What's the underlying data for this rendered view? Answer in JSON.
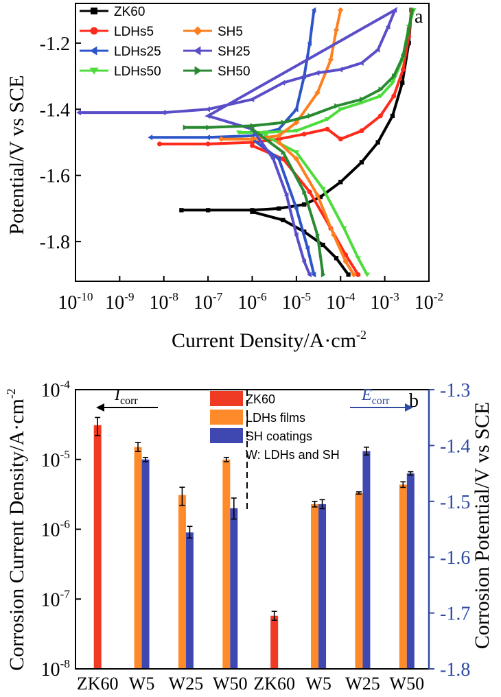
{
  "chart_data": [
    {
      "panel": "a",
      "type": "line",
      "xlabel": "Current Density/A·cm",
      "xlabel_sup": "-2",
      "ylabel": "Potential/V vs SCE",
      "x_scale": "log",
      "xlim": [
        1e-10,
        0.01
      ],
      "ylim": [
        -1.92,
        -1.08
      ],
      "x_ticks": [
        {
          "base": "10",
          "exp": "-10"
        },
        {
          "base": "10",
          "exp": "-9"
        },
        {
          "base": "10",
          "exp": "-8"
        },
        {
          "base": "10",
          "exp": "-7"
        },
        {
          "base": "10",
          "exp": "-6"
        },
        {
          "base": "10",
          "exp": "-5"
        },
        {
          "base": "10",
          "exp": "-4"
        },
        {
          "base": "10",
          "exp": "-3"
        },
        {
          "base": "10",
          "exp": "-2"
        }
      ],
      "y_ticks": [
        {
          "value": -1.2,
          "label": "-1.2"
        },
        {
          "value": -1.4,
          "label": "-1.4"
        },
        {
          "value": -1.6,
          "label": "-1.6"
        },
        {
          "value": -1.8,
          "label": "-1.8"
        }
      ],
      "legend_position": "top-left",
      "series": [
        {
          "name": "ZK60",
          "color": "#000000",
          "marker": "square",
          "points": [
            [
              2.5e-08,
              -1.705
            ],
            [
              1e-07,
              -1.705
            ],
            [
              1e-06,
              -1.705
            ],
            [
              4e-06,
              -1.7
            ],
            [
              1.5e-05,
              -1.688
            ],
            [
              3.5e-05,
              -1.665
            ],
            [
              0.0001,
              -1.62
            ],
            [
              0.0003,
              -1.56
            ],
            [
              0.0007,
              -1.5
            ],
            [
              0.0015,
              -1.42
            ],
            [
              0.0025,
              -1.32
            ],
            [
              0.0035,
              -1.2
            ],
            [
              0.004,
              -1.1
            ],
            [
              1e-06,
              -1.71
            ],
            [
              5e-06,
              -1.735
            ],
            [
              1.5e-05,
              -1.77
            ],
            [
              4e-05,
              -1.81
            ],
            [
              8e-05,
              -1.85
            ],
            [
              0.00015,
              -1.9
            ]
          ]
        },
        {
          "name": "LDHs5",
          "color": "#ff2a1a",
          "marker": "circle",
          "points": [
            [
              8e-09,
              -1.505
            ],
            [
              1e-07,
              -1.505
            ],
            [
              1e-06,
              -1.5
            ],
            [
              4e-06,
              -1.49
            ],
            [
              1.5e-05,
              -1.475
            ],
            [
              5e-05,
              -1.46
            ],
            [
              0.0001,
              -1.49
            ],
            [
              0.0003,
              -1.465
            ],
            [
              0.0008,
              -1.42
            ],
            [
              0.0016,
              -1.36
            ],
            [
              0.0026,
              -1.28
            ],
            [
              0.0035,
              -1.18
            ],
            [
              0.004,
              -1.1
            ],
            [
              1e-06,
              -1.51
            ],
            [
              5e-06,
              -1.55
            ],
            [
              2e-05,
              -1.65
            ],
            [
              6e-05,
              -1.76
            ],
            [
              0.00013,
              -1.84
            ],
            [
              0.00025,
              -1.9
            ]
          ]
        },
        {
          "name": "LDHs25",
          "color": "#2d55c8",
          "marker": "triangle-left",
          "points": [
            [
              5e-09,
              -1.485
            ],
            [
              1e-07,
              -1.485
            ],
            [
              1e-06,
              -1.48
            ],
            [
              4e-06,
              -1.46
            ],
            [
              1e-05,
              -1.4
            ],
            [
              1.5e-05,
              -1.3
            ],
            [
              2e-05,
              -1.2
            ],
            [
              2.5e-05,
              -1.1
            ],
            [
              1e-06,
              -1.49
            ],
            [
              4e-06,
              -1.55
            ],
            [
              1e-05,
              -1.7
            ],
            [
              1.8e-05,
              -1.82
            ],
            [
              2.5e-05,
              -1.9
            ]
          ]
        },
        {
          "name": "LDHs50",
          "color": "#4ddc3c",
          "marker": "triangle-down",
          "points": [
            [
              5e-07,
              -1.47
            ],
            [
              2e-06,
              -1.47
            ],
            [
              1e-05,
              -1.465
            ],
            [
              5e-05,
              -1.43
            ],
            [
              0.0001,
              -1.4
            ],
            [
              0.0003,
              -1.38
            ],
            [
              0.0008,
              -1.36
            ],
            [
              0.0015,
              -1.32
            ],
            [
              0.0025,
              -1.25
            ],
            [
              0.0035,
              -1.15
            ],
            [
              0.0045,
              -1.1
            ],
            [
              2e-06,
              -1.48
            ],
            [
              1e-05,
              -1.53
            ],
            [
              4e-05,
              -1.64
            ],
            [
              0.00012,
              -1.76
            ],
            [
              0.00025,
              -1.85
            ],
            [
              0.0004,
              -1.9
            ]
          ]
        },
        {
          "name": "SH5",
          "color": "#ff7f1e",
          "marker": "diamond",
          "points": [
            [
              2e-07,
              -1.49
            ],
            [
              1e-06,
              -1.49
            ],
            [
              4e-06,
              -1.48
            ],
            [
              1e-05,
              -1.44
            ],
            [
              3e-05,
              -1.35
            ],
            [
              6e-05,
              -1.25
            ],
            [
              8e-05,
              -1.16
            ],
            [
              0.0001,
              -1.1
            ],
            [
              4e-06,
              -1.5
            ],
            [
              1e-05,
              -1.55
            ],
            [
              3e-05,
              -1.66
            ],
            [
              7e-05,
              -1.78
            ],
            [
              0.00013,
              -1.86
            ],
            [
              0.0002,
              -1.9
            ]
          ]
        },
        {
          "name": "SH25",
          "color": "#5a4ec8",
          "marker": "triangle-left",
          "points": [
            [
              1.2e-10,
              -1.41
            ],
            [
              1e-08,
              -1.41
            ],
            [
              1e-07,
              -1.4
            ],
            [
              1e-06,
              -1.37
            ],
            [
              5e-06,
              -1.32
            ],
            [
              3e-05,
              -1.29
            ],
            [
              0.0001,
              -1.28
            ],
            [
              0.0003,
              -1.26
            ],
            [
              0.0007,
              -1.22
            ],
            [
              0.0012,
              -1.15
            ],
            [
              0.0017,
              -1.1
            ],
            [
              1e-07,
              -1.42
            ],
            [
              1e-06,
              -1.46
            ],
            [
              3e-06,
              -1.55
            ],
            [
              6e-06,
              -1.66
            ],
            [
              1e-05,
              -1.78
            ],
            [
              1.5e-05,
              -1.86
            ],
            [
              2e-05,
              -1.9
            ]
          ]
        },
        {
          "name": "SH50",
          "color": "#2a8a32",
          "marker": "triangle-right",
          "points": [
            [
              3e-08,
              -1.455
            ],
            [
              1e-07,
              -1.455
            ],
            [
              1e-06,
              -1.45
            ],
            [
              5e-06,
              -1.44
            ],
            [
              2e-05,
              -1.42
            ],
            [
              8e-05,
              -1.39
            ],
            [
              0.0003,
              -1.37
            ],
            [
              0.0008,
              -1.34
            ],
            [
              0.0016,
              -1.3
            ],
            [
              0.0026,
              -1.24
            ],
            [
              0.0035,
              -1.16
            ],
            [
              0.0042,
              -1.1
            ],
            [
              1e-06,
              -1.46
            ],
            [
              5e-06,
              -1.53
            ],
            [
              1.5e-05,
              -1.65
            ],
            [
              3e-05,
              -1.78
            ],
            [
              4e-05,
              -1.9
            ]
          ]
        }
      ]
    },
    {
      "panel": "b",
      "type": "bar",
      "ylabel_left": "Corrosion Current Density/A·cm",
      "ylabel_left_sup": "-2",
      "ylabel_right": "Corrosion Potential/V vs SCE",
      "y_left_scale": "log",
      "y_left_lim": [
        1e-08,
        0.0001
      ],
      "y_left_ticks": [
        {
          "base": "10",
          "exp": "-8"
        },
        {
          "base": "10",
          "exp": "-7"
        },
        {
          "base": "10",
          "exp": "-6"
        },
        {
          "base": "10",
          "exp": "-5"
        },
        {
          "base": "10",
          "exp": "-4"
        }
      ],
      "y_right_lim": [
        -1.8,
        -1.3
      ],
      "y_right_ticks": [
        "-1.3",
        "-1.4",
        "-1.5",
        "-1.6",
        "-1.7",
        "-1.8"
      ],
      "categories": [
        "ZK60",
        "W5",
        "W25",
        "W50",
        "ZK60",
        "W5",
        "W25",
        "W50"
      ],
      "legend": [
        {
          "label": "ZK60",
          "color": "#ef3a24"
        },
        {
          "label": "LDHs films",
          "color": "#ff8a2a"
        },
        {
          "label": "SH coatings",
          "color": "#3f48b0"
        },
        {
          "label": "W: LDHs and SH",
          "color": ""
        }
      ],
      "annotation_icorr": "I",
      "annotation_icorr_sub": "corr",
      "annotation_ecorr": "E",
      "annotation_ecorr_sub": "corr",
      "icorr": [
        {
          "category": "ZK60",
          "series": "ZK60",
          "value": 3.1e-05,
          "err_low": 2.2e-05,
          "err_high": 4e-05
        },
        {
          "category": "W5",
          "series": "LDHs films",
          "value": 1.5e-05,
          "err_low": 1.3e-05,
          "err_high": 1.75e-05
        },
        {
          "category": "W5",
          "series": "SH coatings",
          "value": 1e-05,
          "err_low": 9.3e-06,
          "err_high": 1.07e-05
        },
        {
          "category": "W25",
          "series": "LDHs films",
          "value": 3.1e-06,
          "err_low": 2.2e-06,
          "err_high": 4e-06
        },
        {
          "category": "W25",
          "series": "SH coatings",
          "value": 9e-07,
          "err_low": 7.5e-07,
          "err_high": 1.1e-06
        },
        {
          "category": "W50",
          "series": "LDHs films",
          "value": 1e-05,
          "err_low": 9.3e-06,
          "err_high": 1.07e-05
        },
        {
          "category": "W50",
          "series": "SH coatings",
          "value": 2e-06,
          "err_low": 1.4e-06,
          "err_high": 2.8e-06
        }
      ],
      "ecorr": [
        {
          "category": "ZK60",
          "series": "ZK60",
          "value": -1.705,
          "err": 0.008
        },
        {
          "category": "W5",
          "series": "LDHs films",
          "value": -1.505,
          "err": 0.005
        },
        {
          "category": "W5",
          "series": "SH coatings",
          "value": -1.505,
          "err": 0.008
        },
        {
          "category": "W25",
          "series": "LDHs films",
          "value": -1.485,
          "err": 0.002
        },
        {
          "category": "W25",
          "series": "SH coatings",
          "value": -1.41,
          "err": 0.007
        },
        {
          "category": "W50",
          "series": "LDHs films",
          "value": -1.47,
          "err": 0.005
        },
        {
          "category": "W50",
          "series": "SH coatings",
          "value": -1.45,
          "err": 0.003
        }
      ]
    }
  ]
}
